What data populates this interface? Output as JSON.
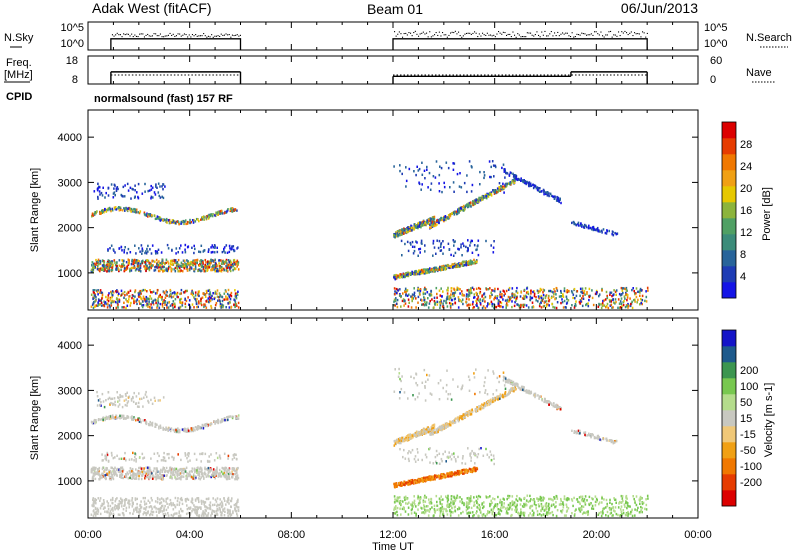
{
  "header": {
    "radar": "Adak West (fitACF)",
    "beam": "Beam 01",
    "date": "06/Jun/2013"
  },
  "colors": {
    "power_scale": [
      "#1414e6",
      "#1e3cb4",
      "#28649a",
      "#3c8c7a",
      "#50a064",
      "#8cb43c",
      "#e6c800",
      "#f0a014",
      "#f07800",
      "#e63c00",
      "#dc0000"
    ],
    "velocity_scale": [
      "#dc0000",
      "#e63c00",
      "#f07800",
      "#f0a014",
      "#f0c878",
      "#c8c8c0",
      "#b4dc8c",
      "#78c850",
      "#3c9650",
      "#1e5a8c",
      "#1414c8"
    ]
  },
  "chart_data": [
    {
      "type": "scatter",
      "name": "sky-noise",
      "left_label": "N.Sky",
      "right_label": "N.Search",
      "left_ticks": [
        "10^5",
        "10^0"
      ],
      "right_ticks": [
        "10^5",
        "10^0"
      ],
      "segments_ut": [
        [
          0.9,
          6.0
        ],
        [
          12.0,
          22.0
        ]
      ]
    },
    {
      "type": "line",
      "name": "frequency-nave",
      "left_label_top": "Freq.",
      "left_label_bottom": "[MHz]",
      "right_label": "Nave",
      "left_ticks": [
        18,
        8
      ],
      "right_ticks": [
        60,
        0
      ],
      "cpid_label": "CPID",
      "cpid_text": "normalsound (fast) 157 RF",
      "segments_ut": [
        [
          0.9,
          6.0
        ],
        [
          12.0,
          22.0
        ]
      ],
      "freq_level": [
        [
          0.9,
          6.0,
          12.6
        ],
        [
          12.0,
          19.0,
          10.6
        ],
        [
          19.0,
          22.0,
          12.6
        ]
      ]
    },
    {
      "type": "heatmap",
      "name": "power",
      "ylabel": "Slant Range [km]",
      "yticks": [
        1000,
        2000,
        3000,
        4000
      ],
      "ylim": [
        180,
        4600
      ],
      "colorbar_label": "Power [dB]",
      "colorbar_ticks": [
        4,
        8,
        12,
        16,
        20,
        24,
        28
      ],
      "colorbar_range": [
        0,
        32
      ]
    },
    {
      "type": "heatmap",
      "name": "velocity",
      "ylabel": "Slant Range [km]",
      "yticks": [
        1000,
        2000,
        3000,
        4000
      ],
      "ylim": [
        180,
        4600
      ],
      "colorbar_label": "Velocity [m s-1]",
      "colorbar_ticks": [
        -200,
        -100,
        -50,
        -15,
        15,
        50,
        100,
        200
      ],
      "xlabel": "Time UT",
      "xticks": [
        "00:00",
        "04:00",
        "08:00",
        "12:00",
        "16:00",
        "20:00",
        "00:00"
      ],
      "xlim": [
        0,
        24
      ]
    }
  ]
}
